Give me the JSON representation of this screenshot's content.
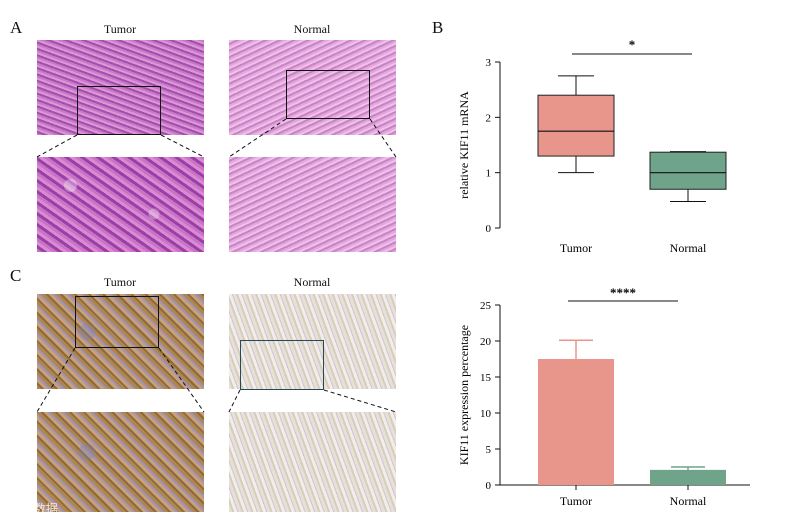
{
  "panels": {
    "A": {
      "letter": "A",
      "left_label": "Tumor",
      "right_label": "Normal"
    },
    "B": {
      "letter": "B"
    },
    "C": {
      "letter": "C",
      "left_label": "Tumor",
      "right_label": "Normal"
    }
  },
  "chart_data": [
    {
      "type": "box",
      "ylabel": "relative KIF11 mRNA",
      "xlabel": "",
      "ylim": [
        0,
        3
      ],
      "yticks": [
        0,
        1,
        2,
        3
      ],
      "categories": [
        "Tumor",
        "Normal"
      ],
      "boxes": [
        {
          "name": "Tumor",
          "min": 1.0,
          "q1": 1.3,
          "median": 1.75,
          "q3": 2.4,
          "max": 2.75,
          "color": "#e8968c"
        },
        {
          "name": "Normal",
          "min": 0.48,
          "q1": 0.7,
          "median": 1.0,
          "q3": 1.37,
          "max": 1.38,
          "color": "#6fa48a"
        }
      ],
      "significance": "*"
    },
    {
      "type": "bar",
      "ylabel": "KIF11 expression percentage",
      "xlabel": "",
      "ylim": [
        0,
        25
      ],
      "yticks": [
        0,
        5,
        10,
        15,
        20,
        25
      ],
      "categories": [
        "Tumor",
        "Normal"
      ],
      "values": [
        17.5,
        2.1
      ],
      "errors": [
        2.6,
        0.4
      ],
      "colors": [
        "#e8968c",
        "#6fa48a"
      ],
      "significance": "****"
    }
  ],
  "watermark": "© 大数据"
}
